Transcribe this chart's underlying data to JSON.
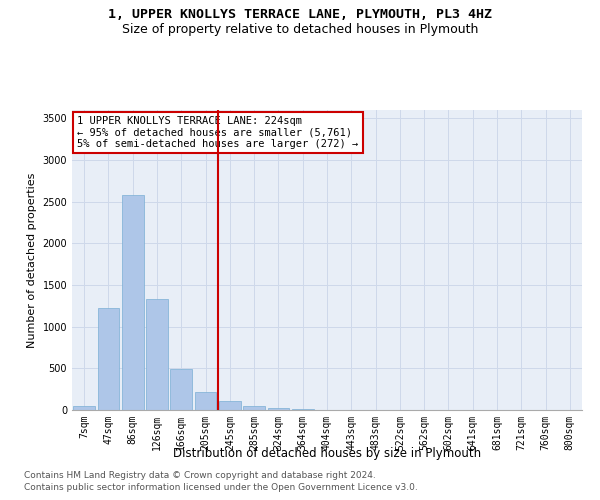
{
  "title": "1, UPPER KNOLLYS TERRACE LANE, PLYMOUTH, PL3 4HZ",
  "subtitle": "Size of property relative to detached houses in Plymouth",
  "xlabel": "Distribution of detached houses by size in Plymouth",
  "ylabel": "Number of detached properties",
  "bar_labels": [
    "7sqm",
    "47sqm",
    "86sqm",
    "126sqm",
    "166sqm",
    "205sqm",
    "245sqm",
    "285sqm",
    "324sqm",
    "364sqm",
    "404sqm",
    "443sqm",
    "483sqm",
    "522sqm",
    "562sqm",
    "602sqm",
    "641sqm",
    "681sqm",
    "721sqm",
    "760sqm",
    "800sqm"
  ],
  "bar_values": [
    45,
    1230,
    2580,
    1330,
    490,
    220,
    110,
    45,
    30,
    10,
    5,
    2,
    1,
    0,
    0,
    0,
    0,
    0,
    0,
    0,
    0
  ],
  "bar_color": "#aec6e8",
  "bar_edge_color": "#7aafd4",
  "annotation_line1": "1 UPPER KNOLLYS TERRACE LANE: 224sqm",
  "annotation_line2": "← 95% of detached houses are smaller (5,761)",
  "annotation_line3": "5% of semi-detached houses are larger (272) →",
  "vline_color": "#cc0000",
  "annotation_box_edge_color": "#cc0000",
  "ylim": [
    0,
    3600
  ],
  "yticks": [
    0,
    500,
    1000,
    1500,
    2000,
    2500,
    3000,
    3500
  ],
  "grid_color": "#ced8ea",
  "bg_color": "#e8eef7",
  "footer_line1": "Contains HM Land Registry data © Crown copyright and database right 2024.",
  "footer_line2": "Contains public sector information licensed under the Open Government Licence v3.0.",
  "title_fontsize": 9.5,
  "subtitle_fontsize": 9,
  "xlabel_fontsize": 8.5,
  "ylabel_fontsize": 8,
  "tick_fontsize": 7,
  "footer_fontsize": 6.5,
  "annot_fontsize": 7.5
}
